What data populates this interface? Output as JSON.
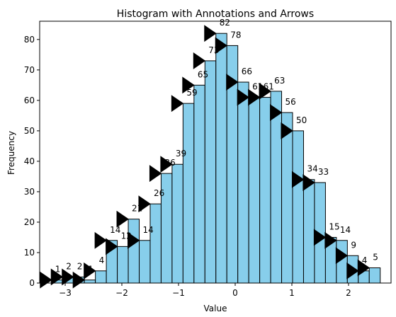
{
  "chart_data": {
    "type": "bar",
    "title": "Histogram with Annotations and Arrows",
    "xlabel": "Value",
    "ylabel": "Frequency",
    "xlim": [
      -3.45,
      2.75
    ],
    "ylim": [
      0,
      86
    ],
    "xticks": [
      -3,
      -2,
      -1,
      0,
      1,
      2
    ],
    "yticks": [
      0,
      10,
      20,
      30,
      40,
      50,
      60,
      70,
      80
    ],
    "bin_start": -3.24,
    "bin_width": 0.1933,
    "values": [
      1,
      2,
      2,
      1,
      4,
      14,
      12,
      21,
      14,
      26,
      36,
      39,
      59,
      65,
      73,
      82,
      78,
      66,
      61,
      61,
      63,
      56,
      50,
      34,
      33,
      15,
      14,
      9,
      4,
      5
    ],
    "bar_color": "#87ceeb",
    "edge_color": "#000000",
    "annotation_marker": "black-triangle-arrow"
  }
}
